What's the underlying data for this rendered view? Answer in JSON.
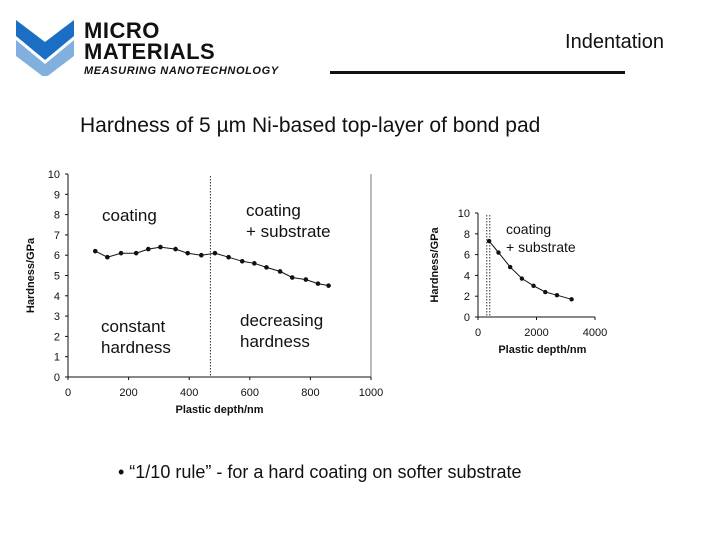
{
  "header": {
    "logo": {
      "line1": "MICRO",
      "line2": "MATERIALS",
      "tagline": "MEASURING NANOTECHNOLOGY"
    },
    "section_title": "Indentation"
  },
  "slide": {
    "heading": "Hardness of 5 µm Ni-based top-layer of bond pad",
    "bullet": "• “1/10 rule” - for a hard coating on softer substrate"
  },
  "annotations": {
    "coating": "coating",
    "coating_substrate_1": "coating",
    "coating_substrate_2": "+ substrate",
    "constant_1": "constant",
    "constant_2": "hardness",
    "decreasing_1": "decreasing",
    "decreasing_2": "hardness",
    "inset_coating_1": "coating",
    "inset_coating_2": "+ substrate"
  },
  "chart_data": [
    {
      "type": "line",
      "xlabel": "Plastic depth/nm",
      "ylabel": "Hardness/GPa",
      "xlim": [
        0,
        1000
      ],
      "ylim": [
        0,
        10
      ],
      "x_ticks": [
        0,
        200,
        400,
        600,
        800,
        1000
      ],
      "y_ticks": [
        0,
        1,
        2,
        3,
        4,
        5,
        6,
        7,
        8,
        9,
        10
      ],
      "divider_x": 470,
      "series": [
        {
          "x": [
            90,
            130,
            175,
            225,
            265,
            305,
            355,
            395,
            440,
            485,
            530,
            575,
            615,
            655,
            700,
            740,
            785,
            825,
            860
          ],
          "y": [
            6.2,
            5.9,
            6.1,
            6.1,
            6.3,
            6.4,
            6.3,
            6.1,
            6.0,
            6.1,
            5.9,
            5.7,
            5.6,
            5.4,
            5.2,
            4.9,
            4.8,
            4.6,
            4.5
          ]
        }
      ]
    },
    {
      "type": "line",
      "xlabel": "Plastic depth/nm",
      "ylabel": "Hardness/GPa",
      "xlim": [
        0,
        4000
      ],
      "ylim": [
        0,
        10
      ],
      "x_ticks": [
        0,
        2000,
        4000
      ],
      "y_ticks": [
        0,
        2,
        4,
        6,
        8,
        10
      ],
      "divider_x": 300,
      "series": [
        {
          "x": [
            380,
            700,
            1100,
            1500,
            1900,
            2300,
            2700,
            3200
          ],
          "y": [
            7.3,
            6.2,
            4.8,
            3.7,
            3.0,
            2.4,
            2.1,
            1.7
          ]
        }
      ]
    }
  ]
}
